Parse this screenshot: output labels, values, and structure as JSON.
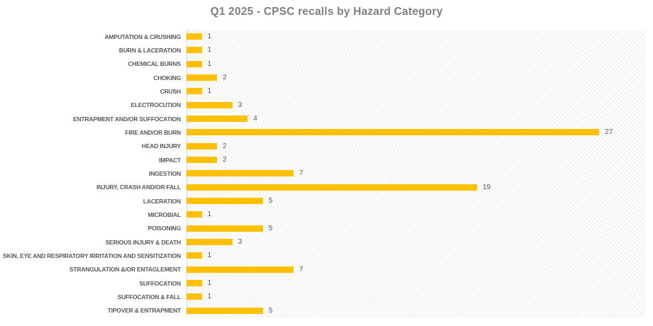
{
  "chart_data": {
    "type": "bar",
    "orientation": "horizontal",
    "title": "Q1 2025 - CPSC recalls by Hazard Category",
    "categories": [
      "AMPUTATION & CRUSHING",
      "BURN & LACERATION",
      "CHEMICAL BURNS",
      "CHOKING",
      "CRUSH",
      "ELECTROCUTION",
      "ENTRAPMENT AND/OR SUFFOCATION",
      "FIRE AND/OR BURN",
      "HEAD INJURY",
      "IMPACT",
      "INGESTION",
      "INJURY, CRASH AND/OR FALL",
      "LACERATION",
      "MICROBIAL",
      "POISONING",
      "SERIOUS INJURY & DEATH",
      "SKIN, EYE AND RESPIRATORY IRRITATION AND SENSITIZATION",
      "STRANGULATION &/OR ENTAGLEMENT",
      "SUFFOCATION",
      "SUFFOCATION & FALL",
      "TIPOVER & ENTRAPMENT"
    ],
    "values": [
      1,
      1,
      1,
      2,
      1,
      3,
      4,
      27,
      2,
      2,
      7,
      19,
      5,
      1,
      5,
      3,
      1,
      7,
      1,
      1,
      5
    ],
    "xlabel": "",
    "ylabel": "",
    "xlim": [
      0,
      30
    ],
    "grid": false,
    "legend_position": "none",
    "value_labels_shown": true,
    "plot_background": "diagonal-crosshatch",
    "colors": {
      "bar": "#ffc000",
      "title_text": "#7f7f7f",
      "label_text": "#595959",
      "axis_line": "#d9d9d9"
    }
  }
}
